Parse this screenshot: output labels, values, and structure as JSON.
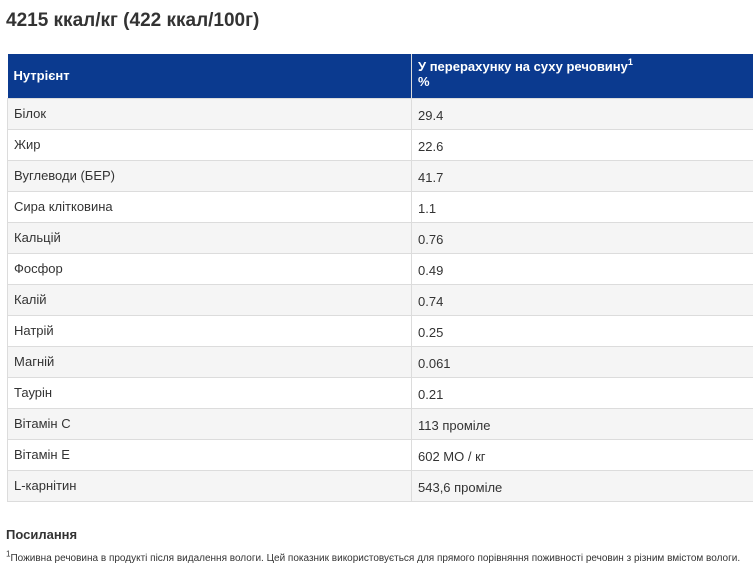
{
  "energy": "4215 ккал/кг (422 ккал/100г)",
  "table": {
    "header_nutrient": "Нутрієнт",
    "header_value": "У перерахунку на суху речовину",
    "header_value_sup": "1",
    "header_value_unit": "%",
    "header_bg": "#0b3a8f",
    "rows": [
      {
        "name": "Білок",
        "value": "29.4"
      },
      {
        "name": "Жир",
        "value": "22.6"
      },
      {
        "name": "Вуглеводи (БЕР)",
        "value": "41.7"
      },
      {
        "name": "Сира клітковина",
        "value": "1.1"
      },
      {
        "name": "Кальцій",
        "value": "0.76"
      },
      {
        "name": "Фосфор",
        "value": "0.49"
      },
      {
        "name": "Калій",
        "value": "0.74"
      },
      {
        "name": "Натрій",
        "value": "0.25"
      },
      {
        "name": "Магній",
        "value": "0.061"
      },
      {
        "name": "Таурін",
        "value": "0.21"
      },
      {
        "name": "Вітамін C",
        "value": "113 проміле"
      },
      {
        "name": "Вітамін E",
        "value": "602 МО / кг"
      },
      {
        "name": "L-карнітин",
        "value": "543,6 проміле"
      }
    ]
  },
  "references": {
    "heading": "Посилання",
    "note_sup": "1",
    "note_text": "Поживна речовина в продукті після видалення вологи. Цей показник використовується для прямого порівняння поживності речовин з різним вмістом вологи."
  }
}
